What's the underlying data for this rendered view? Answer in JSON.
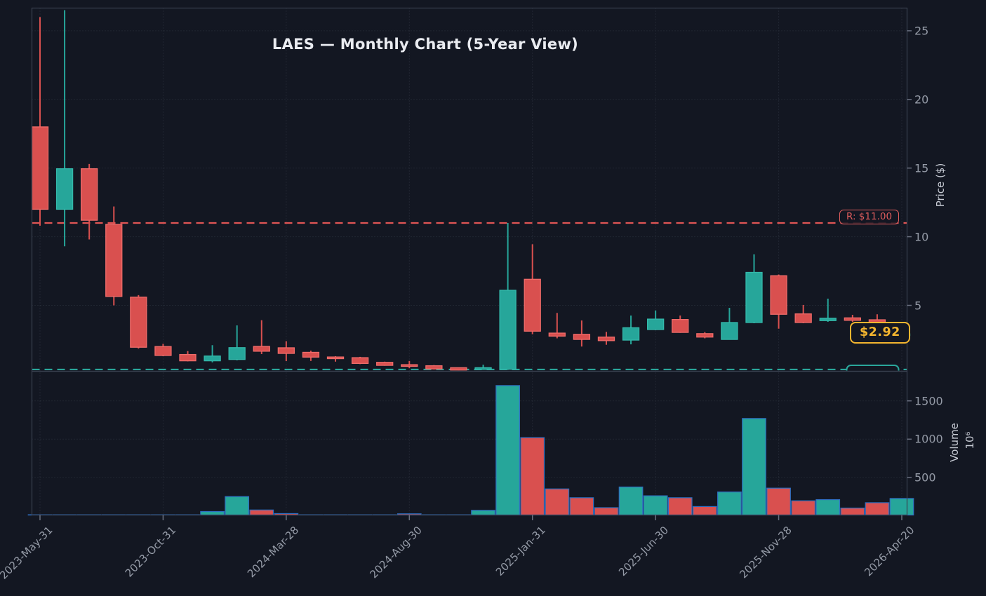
{
  "title": "LAES — Monthly Chart (5-Year View)",
  "axes": {
    "price_label": "Price ($)",
    "volume_label": "Volume",
    "volume_unit": "10⁶",
    "price_tick_labels": [
      "25",
      "20",
      "15",
      "10",
      "5"
    ],
    "volume_tick_labels": [
      "1500",
      "1000",
      "500"
    ],
    "x_tick_labels": [
      "2023-May-31",
      "2023-Oct-31",
      "2024-Mar-28",
      "2024-Aug-30",
      "2025-Jan-31",
      "2025-Jun-30",
      "2025-Nov-28",
      "2026-Apr-20"
    ]
  },
  "annotations": {
    "resistance_label": "R: $11.00",
    "resistance_value": 11.0,
    "support_value": 0.33,
    "last_price_label": "$2.92",
    "last_price_value": 2.92
  },
  "colors": {
    "background": "#131722",
    "up": "#26a69a",
    "up_edge": "#34b9ab",
    "down": "#d9504f",
    "down_edge": "#ef6c6a",
    "volume_edge": "#2f6fc2",
    "grid": "#2e3440",
    "spine": "#3a4150",
    "tick_text": "#959ba7",
    "resistance": "#e05555",
    "support": "#2aa79b",
    "last_price": "#f3b52f"
  },
  "chart_data": {
    "type": "candlestick+volume",
    "title": "LAES — Monthly Chart (5-Year View)",
    "ylabel": "Price ($)",
    "ylabel_lower": "Volume 10⁶",
    "price_ylim": [
      0.2,
      27.1
    ],
    "volume_ylim": [
      0,
      1900
    ],
    "price_gridlines": [
      25,
      20,
      15,
      10,
      5
    ],
    "volume_gridlines": [
      1500,
      1000,
      500
    ],
    "x_tick_indices": [
      0,
      5,
      10,
      15,
      20,
      25,
      30,
      35
    ],
    "months": [
      "2023-05",
      "2023-06",
      "2023-07",
      "2023-08",
      "2023-09",
      "2023-10",
      "2023-11",
      "2023-12",
      "2024-01",
      "2024-02",
      "2024-03",
      "2024-04",
      "2024-05",
      "2024-06",
      "2024-07",
      "2024-08",
      "2024-09",
      "2024-10",
      "2024-11",
      "2024-12",
      "2025-01",
      "2025-02",
      "2025-03",
      "2025-04",
      "2025-05",
      "2025-06",
      "2025-07",
      "2025-08",
      "2025-09",
      "2025-10",
      "2025-11",
      "2025-12",
      "2026-01",
      "2026-02",
      "2026-03",
      "2026-04"
    ],
    "ohlc": [
      [
        18.0,
        26.0,
        10.8,
        12.0
      ],
      [
        12.0,
        26.5,
        9.3,
        14.95
      ],
      [
        14.95,
        15.3,
        9.8,
        11.2
      ],
      [
        10.9,
        12.2,
        5.0,
        5.65
      ],
      [
        5.6,
        5.75,
        1.85,
        1.95
      ],
      [
        2.0,
        2.2,
        1.3,
        1.35
      ],
      [
        1.42,
        1.67,
        0.92,
        0.96
      ],
      [
        0.96,
        2.1,
        0.85,
        1.31
      ],
      [
        1.06,
        3.54,
        1.0,
        1.92
      ],
      [
        2.01,
        3.92,
        1.45,
        1.66
      ],
      [
        1.91,
        2.39,
        0.94,
        1.5
      ],
      [
        1.58,
        1.7,
        0.95,
        1.23
      ],
      [
        1.24,
        1.3,
        0.9,
        1.15
      ],
      [
        1.19,
        1.25,
        0.72,
        0.77
      ],
      [
        0.85,
        0.9,
        0.6,
        0.63
      ],
      [
        0.68,
        0.95,
        0.42,
        0.62
      ],
      [
        0.6,
        0.65,
        0.33,
        0.37
      ],
      [
        0.46,
        0.48,
        0.27,
        0.29
      ],
      [
        0.35,
        0.68,
        0.31,
        0.46
      ],
      [
        0.35,
        11.0,
        0.3,
        6.1
      ],
      [
        6.9,
        9.45,
        2.9,
        3.12
      ],
      [
        2.98,
        4.45,
        2.6,
        2.76
      ],
      [
        2.89,
        3.9,
        2.0,
        2.52
      ],
      [
        2.69,
        3.07,
        2.13,
        2.43
      ],
      [
        2.47,
        4.26,
        2.16,
        3.37
      ],
      [
        3.24,
        4.63,
        3.2,
        4.0
      ],
      [
        3.97,
        4.26,
        3.0,
        3.03
      ],
      [
        2.94,
        3.05,
        2.6,
        2.69
      ],
      [
        2.52,
        4.82,
        2.5,
        3.75
      ],
      [
        3.75,
        8.72,
        3.7,
        7.4
      ],
      [
        7.16,
        7.25,
        3.3,
        4.35
      ],
      [
        4.38,
        5.03,
        3.7,
        3.75
      ],
      [
        3.89,
        5.49,
        3.8,
        4.06
      ],
      [
        4.09,
        4.31,
        3.8,
        3.91
      ],
      [
        3.95,
        4.35,
        2.7,
        2.8
      ],
      [
        2.8,
        3.3,
        2.6,
        2.92
      ]
    ],
    "volume_millions": [
      2,
      3,
      2,
      2,
      2,
      1,
      2,
      55,
      250,
      75,
      28,
      8,
      5,
      6,
      4,
      25,
      6,
      8,
      70,
      1700,
      1020,
      350,
      235,
      105,
      375,
      260,
      235,
      120,
      310,
      1270,
      360,
      195,
      210,
      100,
      170,
      225
    ]
  }
}
